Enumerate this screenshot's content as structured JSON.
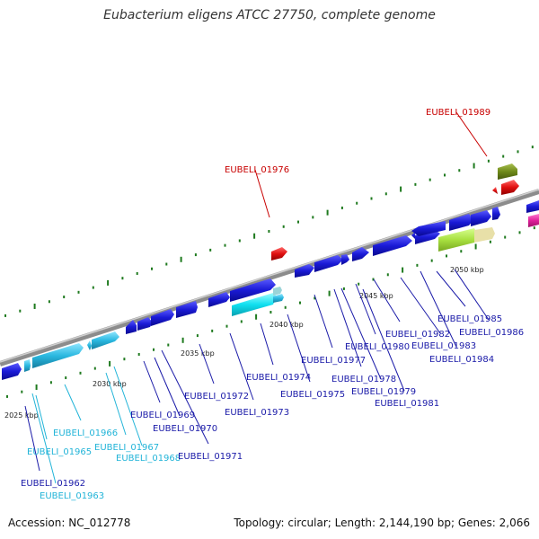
{
  "header": {
    "title": "Eubacterium eligens ATCC 27750, complete genome"
  },
  "footer": {
    "accession_text": "Accession: NC_012778",
    "summary_text": "Topology: circular; Length: 2,144,190 bp; Genes: 2,066"
  },
  "colors": {
    "backbone": "#8c8c8c",
    "tick_marks": "#1f7a1f",
    "gene_blue": "#1a1ad6",
    "gene_cyan": "#2ab8e0",
    "gene_red": "#e01010",
    "gene_olive": "#6f8a1a",
    "gene_lime": "#a8e040",
    "gene_pink": "#e0209a",
    "label_navy": "#1a1aa8",
    "label_cyan": "#22b4d8",
    "label_red": "#c80000"
  },
  "ticks": [
    {
      "label": "2025 kbp",
      "kbp": 2025
    },
    {
      "label": "2030 kbp",
      "kbp": 2030
    },
    {
      "label": "2035 kbp",
      "kbp": 2035
    },
    {
      "label": "2040 kbp",
      "kbp": 2040
    },
    {
      "label": "2045 kbp",
      "kbp": 2045
    },
    {
      "label": "2050 kbp",
      "kbp": 2050
    }
  ],
  "gene_labels": [
    {
      "name": "EUBELI_01962",
      "color": "label_navy"
    },
    {
      "name": "EUBELI_01963",
      "color": "label_cyan"
    },
    {
      "name": "EUBELI_01965",
      "color": "label_cyan"
    },
    {
      "name": "EUBELI_01966",
      "color": "label_cyan"
    },
    {
      "name": "EUBELI_01967",
      "color": "label_cyan"
    },
    {
      "name": "EUBELI_01968",
      "color": "label_cyan"
    },
    {
      "name": "EUBELI_01969",
      "color": "label_navy"
    },
    {
      "name": "EUBELI_01970",
      "color": "label_navy"
    },
    {
      "name": "EUBELI_01971",
      "color": "label_navy"
    },
    {
      "name": "EUBELI_01972",
      "color": "label_navy"
    },
    {
      "name": "EUBELI_01973",
      "color": "label_navy"
    },
    {
      "name": "EUBELI_01974",
      "color": "label_navy"
    },
    {
      "name": "EUBELI_01975",
      "color": "label_navy"
    },
    {
      "name": "EUBELI_01976",
      "color": "label_red"
    },
    {
      "name": "EUBELI_01977",
      "color": "label_navy"
    },
    {
      "name": "EUBELI_01978",
      "color": "label_navy"
    },
    {
      "name": "EUBELI_01979",
      "color": "label_navy"
    },
    {
      "name": "EUBELI_01980",
      "color": "label_navy"
    },
    {
      "name": "EUBELI_01981",
      "color": "label_navy"
    },
    {
      "name": "EUBELI_01982",
      "color": "label_navy"
    },
    {
      "name": "EUBELI_01983",
      "color": "label_navy"
    },
    {
      "name": "EUBELI_01984",
      "color": "label_navy"
    },
    {
      "name": "EUBELI_01985",
      "color": "label_navy"
    },
    {
      "name": "EUBELI_01986",
      "color": "label_navy"
    },
    {
      "name": "EUBELI_01989",
      "color": "label_red"
    }
  ]
}
